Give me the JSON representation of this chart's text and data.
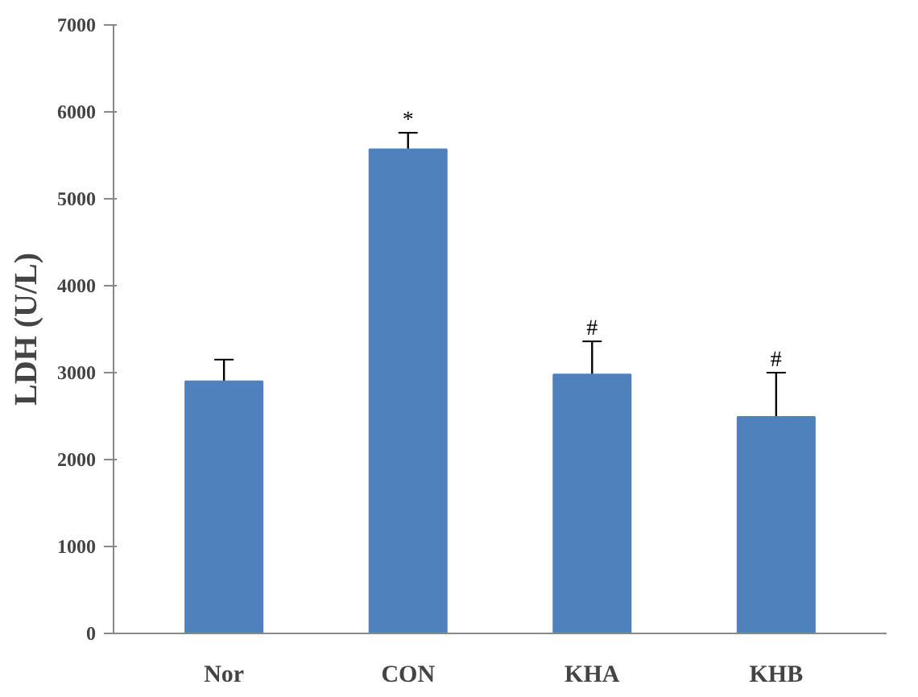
{
  "chart_data": {
    "type": "bar",
    "ylabel": "LDH (U/L)",
    "categories": [
      "Nor",
      "CON",
      "KHA",
      "KHB"
    ],
    "values": [
      2900,
      5570,
      2980,
      2490
    ],
    "errors": [
      250,
      190,
      380,
      510
    ],
    "color": "#4f81bd",
    "ylim": [
      0,
      7000
    ],
    "yticks": [
      0,
      1000,
      2000,
      3000,
      4000,
      5000,
      6000,
      7000
    ],
    "grid": false,
    "annotations": [
      {
        "text": "*",
        "x": "CON",
        "y": 5760
      },
      {
        "text": "#",
        "x": "KHA",
        "y": 3360
      },
      {
        "text": "#",
        "x": "KHB",
        "y": 3000
      }
    ]
  }
}
